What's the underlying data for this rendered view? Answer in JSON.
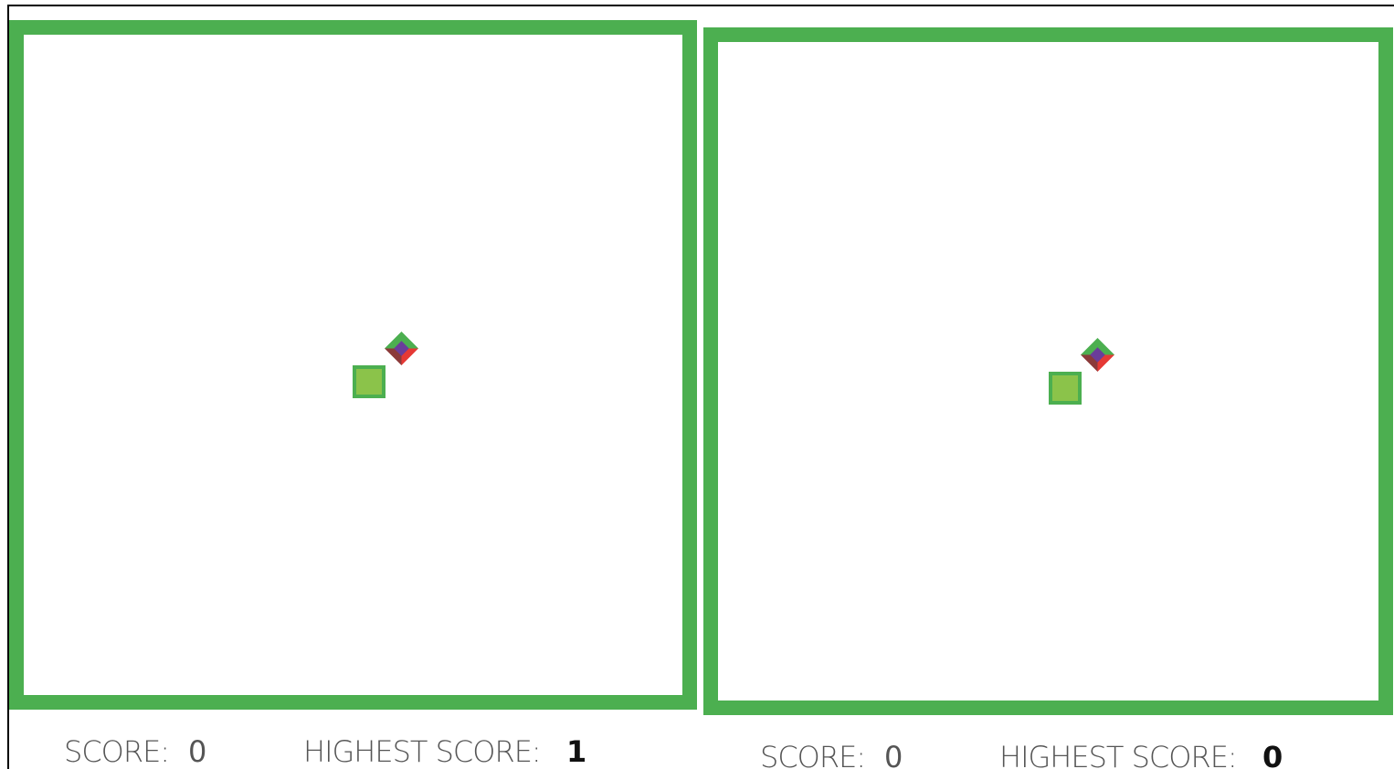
{
  "colors": {
    "board_border": "#4caf50",
    "food_border": "#4caf50",
    "food_fill": "#8bc34a",
    "head_top": "#4caf50",
    "head_center": "#6a3d9a",
    "head_bottom_left": "#8b3a3a",
    "head_bottom_right": "#e53935",
    "label_text": "#555555",
    "value_text": "#111111"
  },
  "games": [
    {
      "score_label": "SCORE:",
      "score_value": "0",
      "highest_label": "HIGHEST SCORE:",
      "highest_value": "1"
    },
    {
      "score_label": "SCORE:",
      "score_value": "0",
      "highest_label": "HIGHEST SCORE:",
      "highest_value": "0"
    }
  ]
}
